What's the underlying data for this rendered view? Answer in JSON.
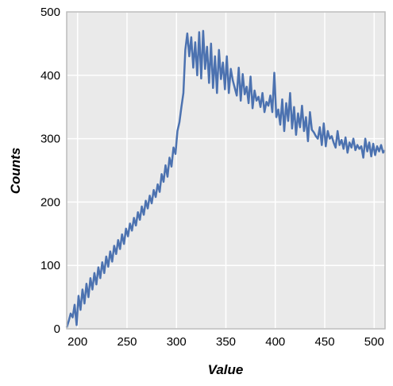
{
  "chart_data": {
    "type": "line",
    "title": "",
    "xlabel": "Value",
    "ylabel": "Counts",
    "xlim": [
      189,
      511
    ],
    "ylim": [
      0,
      500
    ],
    "x_ticks": [
      200,
      250,
      300,
      350,
      400,
      450,
      500
    ],
    "y_ticks": [
      0,
      100,
      200,
      300,
      400,
      500
    ],
    "grid": true,
    "legend": "none",
    "colors": {
      "background": "#eaeaea",
      "grid": "#ffffff",
      "line": "#4c72b0",
      "frame": "#bbbbbb"
    },
    "series": [
      {
        "x": [
          189,
          191,
          193,
          195,
          197,
          199,
          201,
          203,
          205,
          207,
          209,
          211,
          213,
          215,
          217,
          219,
          221,
          223,
          225,
          227,
          229,
          231,
          233,
          235,
          237,
          239,
          241,
          243,
          245,
          247,
          249,
          251,
          253,
          255,
          257,
          259,
          261,
          263,
          265,
          267,
          269,
          271,
          273,
          275,
          277,
          279,
          281,
          283,
          285,
          287,
          289,
          291,
          293,
          295,
          297,
          299,
          301,
          303,
          305,
          307,
          309,
          311,
          313,
          315,
          317,
          319,
          321,
          323,
          325,
          327,
          329,
          331,
          333,
          335,
          337,
          339,
          341,
          343,
          345,
          347,
          349,
          351,
          353,
          355,
          357,
          359,
          361,
          363,
          365,
          367,
          369,
          371,
          373,
          375,
          377,
          379,
          381,
          383,
          385,
          387,
          389,
          391,
          393,
          395,
          397,
          399,
          401,
          403,
          405,
          407,
          409,
          411,
          413,
          415,
          417,
          419,
          421,
          423,
          425,
          427,
          429,
          431,
          433,
          435,
          437,
          439,
          441,
          443,
          445,
          447,
          449,
          451,
          453,
          455,
          457,
          459,
          461,
          463,
          465,
          467,
          469,
          471,
          473,
          475,
          477,
          479,
          481,
          483,
          485,
          487,
          489,
          491,
          493,
          495,
          497,
          499,
          501,
          503,
          505,
          507,
          509,
          511
        ],
        "values": [
          2,
          12,
          24,
          18,
          38,
          6,
          52,
          30,
          62,
          40,
          71,
          50,
          80,
          62,
          88,
          70,
          97,
          80,
          105,
          88,
          114,
          98,
          122,
          106,
          131,
          118,
          140,
          126,
          149,
          134,
          158,
          146,
          166,
          155,
          175,
          163,
          184,
          172,
          193,
          180,
          202,
          190,
          210,
          198,
          219,
          208,
          228,
          216,
          244,
          232,
          258,
          240,
          270,
          256,
          286,
          276,
          312,
          326,
          350,
          372,
          440,
          466,
          430,
          460,
          412,
          452,
          400,
          468,
          395,
          470,
          410,
          445,
          388,
          450,
          380,
          430,
          372,
          440,
          394,
          420,
          378,
          430,
          372,
          410,
          392,
          380,
          368,
          412,
          360,
          402,
          370,
          382,
          356,
          398,
          348,
          376,
          360,
          366,
          350,
          372,
          342,
          358,
          352,
          368,
          342,
          404,
          334,
          346,
          322,
          362,
          312,
          356,
          328,
          372,
          316,
          350,
          306,
          340,
          318,
          352,
          312,
          334,
          296,
          342,
          314,
          310,
          304,
          300,
          318,
          290,
          324,
          288,
          312,
          300,
          304,
          294,
          286,
          312,
          290,
          298,
          284,
          302,
          278,
          294,
          286,
          300,
          282,
          290,
          284,
          288,
          270,
          300,
          280,
          294,
          272,
          292,
          274,
          288,
          280,
          290,
          278,
          282
        ]
      }
    ]
  }
}
